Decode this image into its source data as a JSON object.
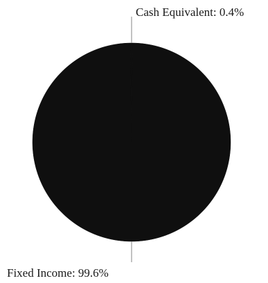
{
  "chart_data": {
    "type": "pie",
    "title": "",
    "slices": [
      {
        "label": "Fixed Income",
        "value": 99.6,
        "display": "Fixed Income: 99.6%"
      },
      {
        "label": "Cash Equivalent",
        "value": 0.4,
        "display": "Cash Equivalent: 0.4%"
      }
    ],
    "colors": {
      "slice": "#0f0f0f",
      "leader_line": "#9a9a9a"
    },
    "legend": "none"
  }
}
